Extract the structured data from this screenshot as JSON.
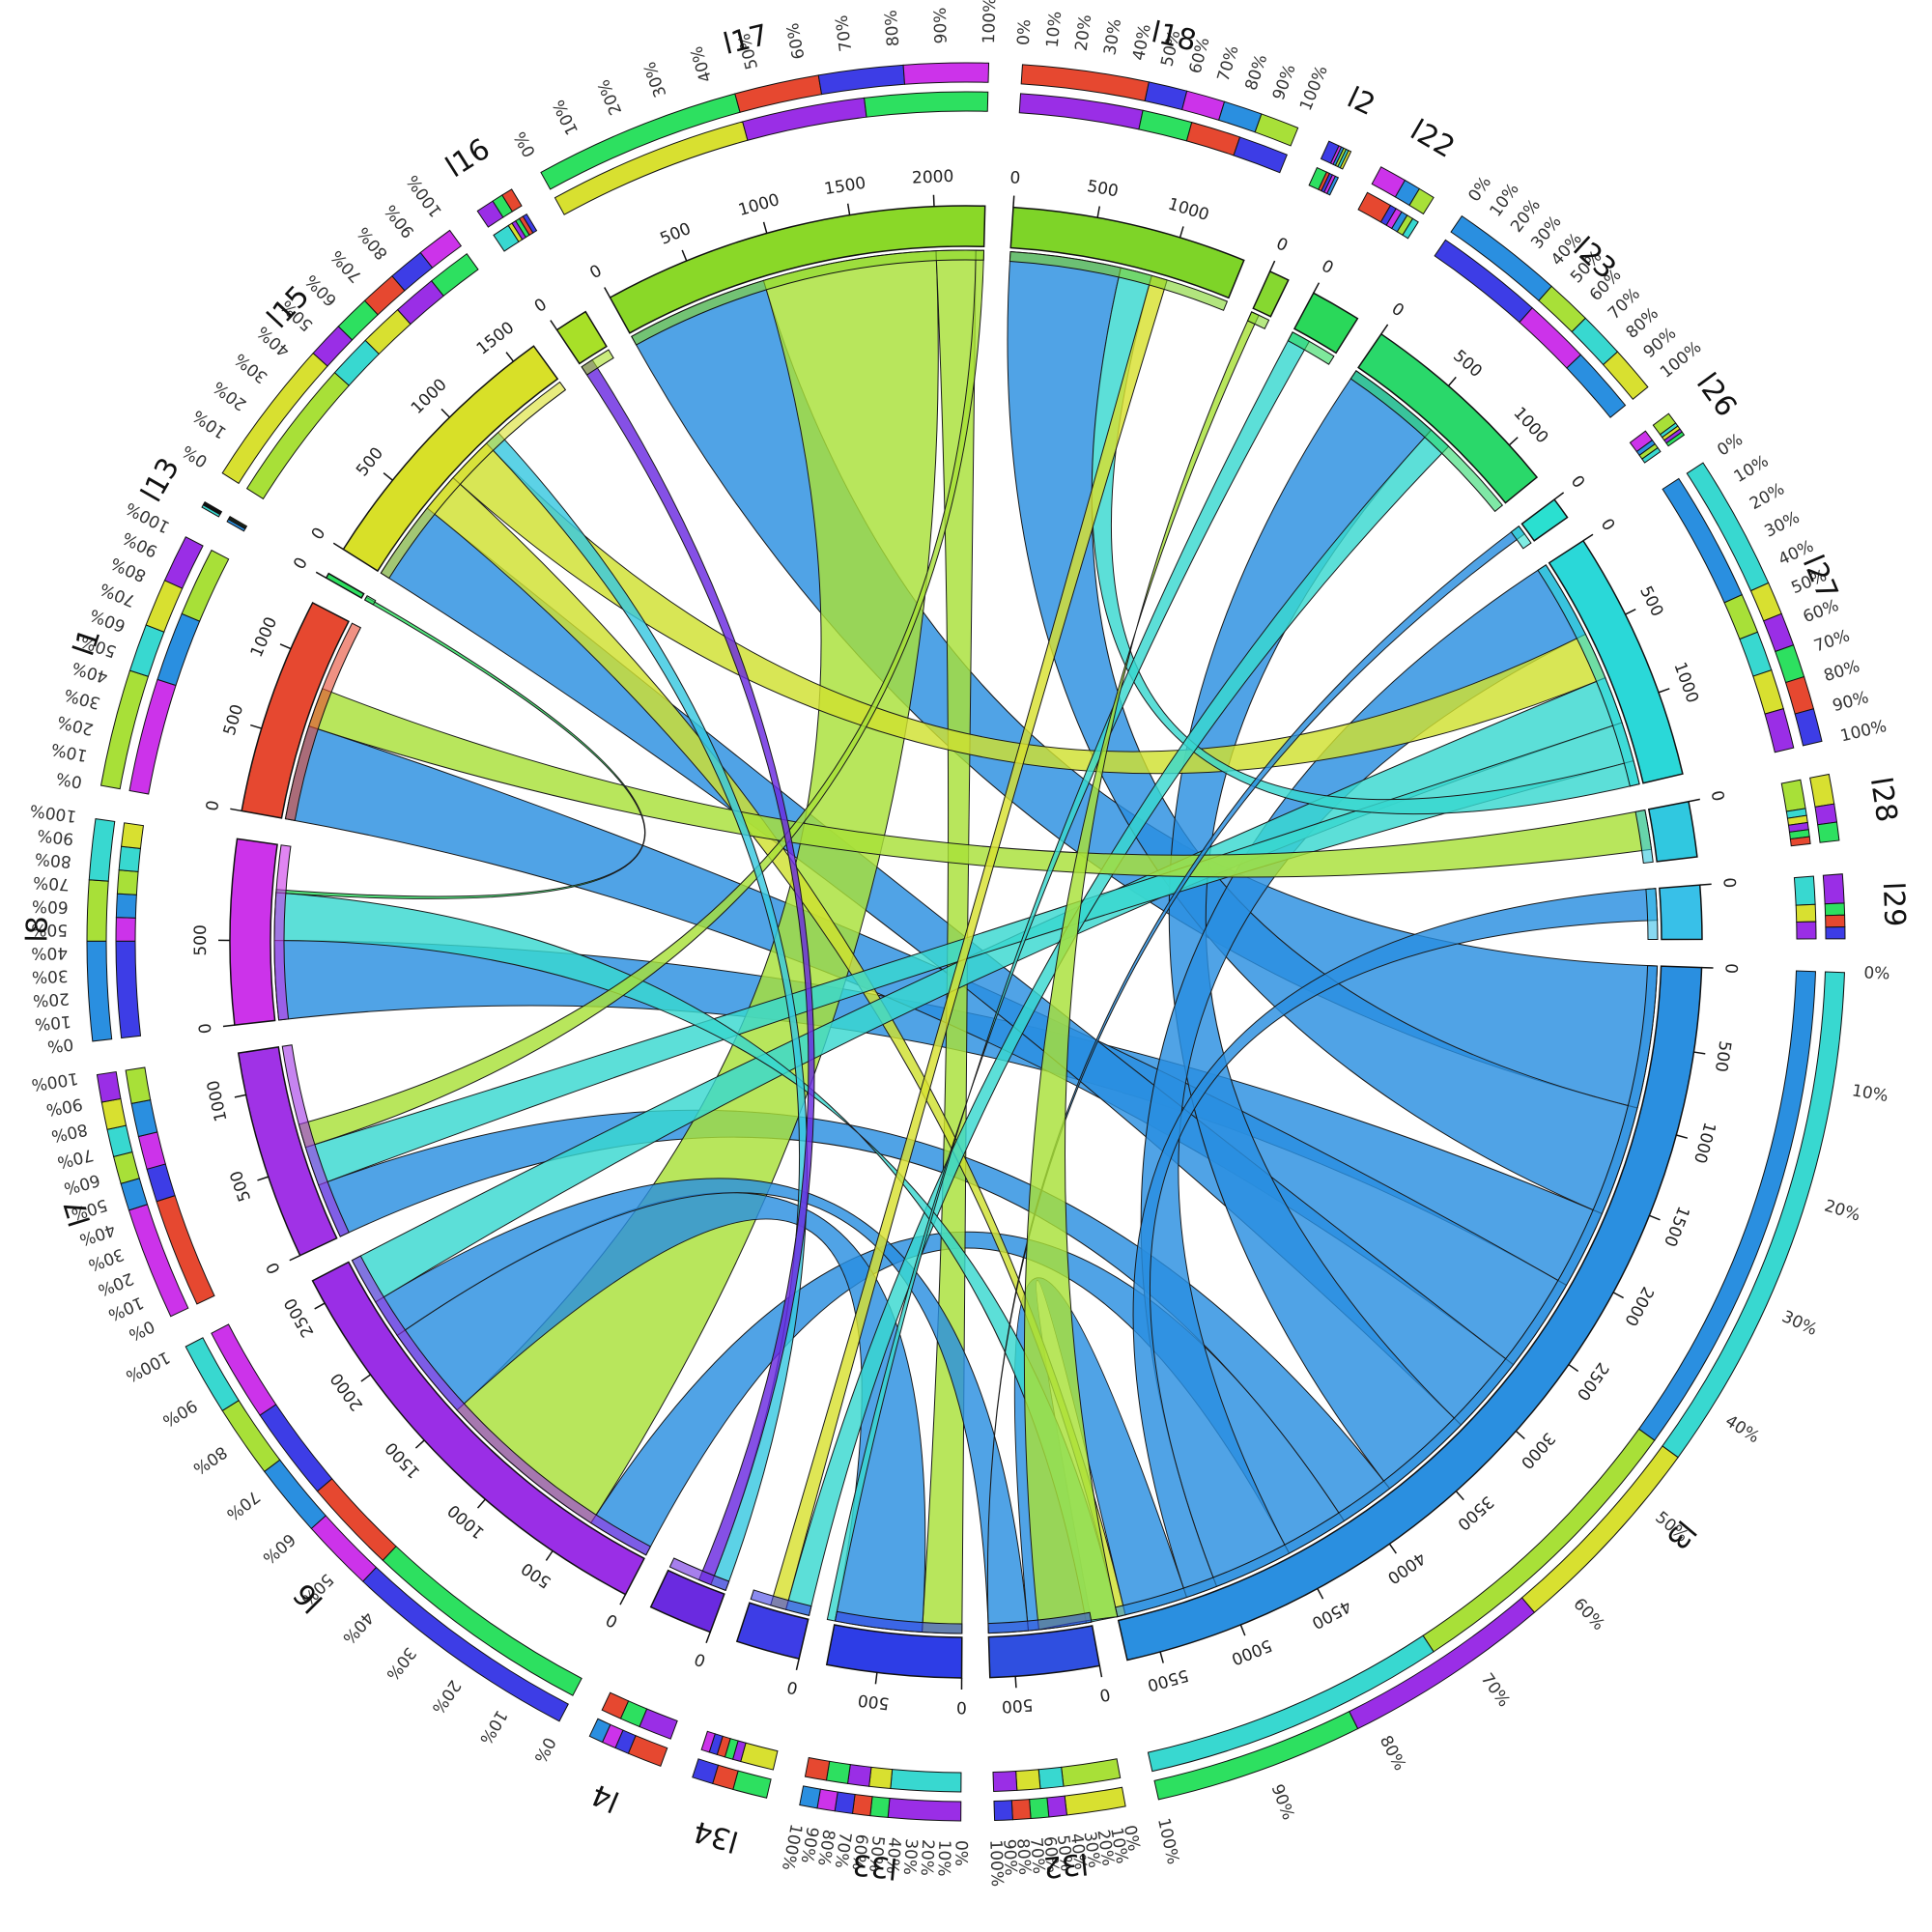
{
  "chart_data": {
    "type": "chord",
    "title": "",
    "segments": [
      {
        "name": "l3",
        "color": "#2a8fe0",
        "total": 5700,
        "ticks": [
          0,
          500,
          1000,
          1500,
          2000,
          2500,
          3000,
          3500,
          4000,
          4500,
          5000,
          5500
        ]
      },
      {
        "name": "l32",
        "color": "#2f4fe0",
        "total": 650,
        "ticks": [
          0,
          500
        ]
      },
      {
        "name": "l33",
        "color": "#2d3de6",
        "total": 800,
        "ticks": [
          0,
          500
        ]
      },
      {
        "name": "l34",
        "color": "#3d3de6",
        "total": 380,
        "ticks": [
          0
        ]
      },
      {
        "name": "l4",
        "color": "#6a2ae0",
        "total": 380,
        "ticks": [
          0
        ]
      },
      {
        "name": "l6",
        "color": "#9a2ee6",
        "total": 2650,
        "ticks": [
          0,
          500,
          1000,
          1500,
          2000,
          2500
        ]
      },
      {
        "name": "l7",
        "color": "#a032e6",
        "total": 1250,
        "ticks": [
          0,
          500,
          1000
        ]
      },
      {
        "name": "l8",
        "color": "#cc33ea",
        "total": 1100,
        "ticks": [
          0,
          500
        ]
      },
      {
        "name": "l1",
        "color": "#e64830",
        "total": 1300,
        "ticks": [
          0,
          500,
          1000
        ]
      },
      {
        "name": "l13",
        "color": "#2de060",
        "total": 30,
        "ticks": [
          0
        ]
      },
      {
        "name": "l15",
        "color": "#d8e028",
        "total": 1650,
        "ticks": [
          0,
          500,
          1000,
          1500
        ]
      },
      {
        "name": "l16",
        "color": "#a8e028",
        "total": 200,
        "ticks": [
          0
        ]
      },
      {
        "name": "l17",
        "color": "#8ad828",
        "total": 2300,
        "ticks": [
          0,
          500,
          1000,
          1500,
          2000
        ]
      },
      {
        "name": "l18",
        "color": "#7ed428",
        "total": 1400,
        "ticks": [
          0,
          500,
          1000
        ]
      },
      {
        "name": "l2",
        "color": "#86d830",
        "total": 120,
        "ticks": [
          0
        ]
      },
      {
        "name": "l22",
        "color": "#2ad85a",
        "total": 300,
        "ticks": [
          0
        ]
      },
      {
        "name": "l23",
        "color": "#2ad86a",
        "total": 1250,
        "ticks": [
          0,
          500,
          1000
        ]
      },
      {
        "name": "l26",
        "color": "#2ae0d0",
        "total": 130,
        "ticks": [
          0
        ]
      },
      {
        "name": "l27",
        "color": "#2ad8d8",
        "total": 1500,
        "ticks": [
          0,
          500,
          1000
        ]
      },
      {
        "name": "l28",
        "color": "#30c8e0",
        "total": 330,
        "ticks": [
          0
        ]
      },
      {
        "name": "l29",
        "color": "#38c0e8",
        "total": 320,
        "ticks": [
          0
        ]
      }
    ],
    "pct_ticks": [
      "0%",
      "10%",
      "20%",
      "30%",
      "40%",
      "50%",
      "60%",
      "70%",
      "80%",
      "90%",
      "100%"
    ],
    "links": [
      {
        "from": "l3",
        "to": "l17",
        "value": 900,
        "color": "#2a8fe0"
      },
      {
        "from": "l3",
        "to": "l18",
        "value": 700,
        "color": "#2a8fe0"
      },
      {
        "from": "l3",
        "to": "l8",
        "value": 500,
        "color": "#2a8fe0"
      },
      {
        "from": "l3",
        "to": "l1",
        "value": 600,
        "color": "#2a8fe0"
      },
      {
        "from": "l3",
        "to": "l15",
        "value": 500,
        "color": "#2a8fe0"
      },
      {
        "from": "l3",
        "to": "l23",
        "value": 600,
        "color": "#2a8fe0"
      },
      {
        "from": "l3",
        "to": "l7",
        "value": 350,
        "color": "#2a8fe0"
      },
      {
        "from": "l3",
        "to": "l6",
        "value": 400,
        "color": "#2a8fe0"
      },
      {
        "from": "l3",
        "to": "l27",
        "value": 500,
        "color": "#2a8fe0"
      },
      {
        "from": "l3",
        "to": "l29",
        "value": 200,
        "color": "#2a8fe0"
      },
      {
        "from": "l3",
        "to": "l32",
        "value": 400,
        "color": "#2a8fe0"
      },
      {
        "from": "l17",
        "to": "l6",
        "value": 1100,
        "color": "#a8e038"
      },
      {
        "from": "l17",
        "to": "l33",
        "value": 250,
        "color": "#a8e038"
      },
      {
        "from": "l15",
        "to": "l3",
        "value": 250,
        "color": "#d0e030"
      },
      {
        "from": "l15",
        "to": "l27",
        "value": 300,
        "color": "#d0e030"
      },
      {
        "from": "l6",
        "to": "l33",
        "value": 600,
        "color": "#2a8fe0"
      },
      {
        "from": "l6",
        "to": "l32",
        "value": 250,
        "color": "#2a8fe0"
      },
      {
        "from": "l6",
        "to": "l27",
        "value": 300,
        "color": "#38d8d0"
      },
      {
        "from": "l27",
        "to": "l7",
        "value": 250,
        "color": "#38d8d0"
      },
      {
        "from": "l27",
        "to": "l18",
        "value": 200,
        "color": "#38d8d0"
      },
      {
        "from": "l23",
        "to": "l34",
        "value": 150,
        "color": "#38d8d0"
      },
      {
        "from": "l8",
        "to": "l3",
        "value": 300,
        "color": "#38d8d0"
      },
      {
        "from": "l1",
        "to": "l28",
        "value": 250,
        "color": "#a8e038"
      },
      {
        "from": "l7",
        "to": "l17",
        "value": 150,
        "color": "#a8e038"
      },
      {
        "from": "l4",
        "to": "l15",
        "value": 100,
        "color": "#38c8e0"
      },
      {
        "from": "l34",
        "to": "l18",
        "value": 100,
        "color": "#d8e030"
      },
      {
        "from": "l33",
        "to": "l22",
        "value": 120,
        "color": "#38d8d0"
      },
      {
        "from": "l32",
        "to": "l26",
        "value": 60,
        "color": "#2a8fe0"
      },
      {
        "from": "l2",
        "to": "l3",
        "value": 50,
        "color": "#a8e038"
      },
      {
        "from": "l16",
        "to": "l4",
        "value": 80,
        "color": "#6a2ae0"
      },
      {
        "from": "l13",
        "to": "l8",
        "value": 20,
        "color": "#2de060"
      }
    ],
    "xlabel": "",
    "ylabel": ""
  }
}
